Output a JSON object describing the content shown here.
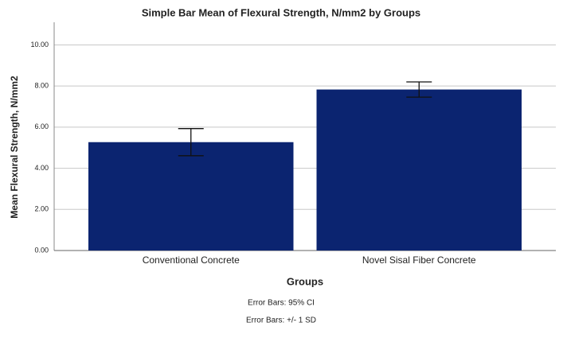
{
  "chart_data": {
    "type": "bar",
    "title": "Simple Bar Mean of Flexural Strength, N/mm2 by Groups",
    "x_label": "Groups",
    "y_label": "Mean Flexural Strength, N/mm2",
    "categories": [
      "Conventional Concrete",
      "Novel Sisal Fiber Concrete"
    ],
    "values": [
      5.27,
      7.83
    ],
    "errors": [
      0.66,
      0.37
    ],
    "color": "#0b2470",
    "ylim": [
      0,
      11.1
    ],
    "yticks": [
      {
        "value": 0,
        "label": "0.00"
      },
      {
        "value": 2,
        "label": "2.00"
      },
      {
        "value": 4,
        "label": "4.00"
      },
      {
        "value": 6,
        "label": "6.00"
      },
      {
        "value": 8,
        "label": "8.00"
      },
      {
        "value": 10,
        "label": "10.00"
      }
    ],
    "grid": true,
    "notes": [
      "Error Bars: 95% CI",
      "Error Bars: +/- 1 SD"
    ]
  }
}
